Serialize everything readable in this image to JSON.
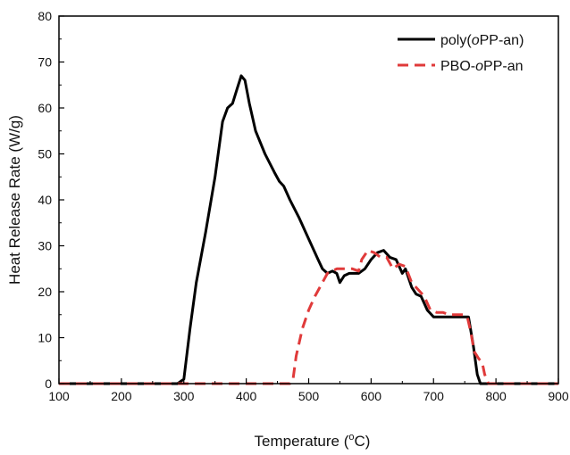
{
  "chart_data": {
    "type": "line",
    "xlabel": "Temperature (°C)",
    "xlabel_parts": {
      "pre": "Temperature (",
      "sup": "o",
      "post": "C)"
    },
    "ylabel": "Heat Release Rate (W/g)",
    "xlim": [
      100,
      900
    ],
    "ylim": [
      0,
      80
    ],
    "x_ticks": [
      100,
      200,
      300,
      400,
      500,
      600,
      700,
      800,
      900
    ],
    "y_ticks": [
      0,
      10,
      20,
      30,
      40,
      50,
      60,
      70,
      80
    ],
    "grid": false,
    "legend_position": "top-right",
    "series": [
      {
        "name": "poly(oPP-an)",
        "name_parts": {
          "pre": "poly(",
          "italic": "o",
          "post": "PP-an)"
        },
        "color": "#000000",
        "dash": "solid",
        "points": [
          [
            100,
            0
          ],
          [
            200,
            0
          ],
          [
            290,
            0
          ],
          [
            300,
            1
          ],
          [
            310,
            12
          ],
          [
            320,
            22
          ],
          [
            335,
            33
          ],
          [
            350,
            45
          ],
          [
            362,
            57
          ],
          [
            370,
            60
          ],
          [
            378,
            61
          ],
          [
            385,
            64
          ],
          [
            392,
            67
          ],
          [
            398,
            66
          ],
          [
            405,
            61
          ],
          [
            415,
            55
          ],
          [
            430,
            50
          ],
          [
            445,
            46
          ],
          [
            453,
            44
          ],
          [
            460,
            43
          ],
          [
            470,
            40
          ],
          [
            485,
            36
          ],
          [
            495,
            33
          ],
          [
            505,
            30
          ],
          [
            515,
            27
          ],
          [
            522,
            25
          ],
          [
            530,
            24
          ],
          [
            538,
            24.5
          ],
          [
            545,
            24
          ],
          [
            550,
            22
          ],
          [
            557,
            23.5
          ],
          [
            565,
            24
          ],
          [
            580,
            24
          ],
          [
            590,
            25
          ],
          [
            600,
            27
          ],
          [
            610,
            28.5
          ],
          [
            620,
            29
          ],
          [
            630,
            27.5
          ],
          [
            640,
            27
          ],
          [
            650,
            24
          ],
          [
            655,
            25
          ],
          [
            665,
            21
          ],
          [
            672,
            19.5
          ],
          [
            680,
            19
          ],
          [
            690,
            16
          ],
          [
            700,
            14.5
          ],
          [
            740,
            14.5
          ],
          [
            756,
            14.5
          ],
          [
            764,
            8
          ],
          [
            770,
            2
          ],
          [
            775,
            0
          ],
          [
            900,
            0
          ]
        ]
      },
      {
        "name": "PBO-oPP-an",
        "name_parts": {
          "pre": "PBO-",
          "italic": "o",
          "post": "PP-an"
        },
        "color": "#e03a3a",
        "dash": "dashed",
        "points": [
          [
            100,
            0
          ],
          [
            200,
            0
          ],
          [
            300,
            0
          ],
          [
            400,
            0
          ],
          [
            470,
            0
          ],
          [
            475,
            1
          ],
          [
            480,
            6
          ],
          [
            490,
            12
          ],
          [
            500,
            16
          ],
          [
            510,
            19
          ],
          [
            520,
            21.5
          ],
          [
            530,
            24
          ],
          [
            545,
            25
          ],
          [
            555,
            25
          ],
          [
            570,
            25
          ],
          [
            580,
            24.5
          ],
          [
            585,
            27
          ],
          [
            595,
            29
          ],
          [
            605,
            28.5
          ],
          [
            615,
            27.5
          ],
          [
            625,
            27.5
          ],
          [
            635,
            25
          ],
          [
            645,
            26
          ],
          [
            655,
            25.5
          ],
          [
            665,
            22
          ],
          [
            675,
            20.5
          ],
          [
            685,
            19
          ],
          [
            695,
            16
          ],
          [
            705,
            15.5
          ],
          [
            715,
            15.5
          ],
          [
            725,
            15
          ],
          [
            740,
            15
          ],
          [
            750,
            15
          ],
          [
            755,
            14
          ],
          [
            760,
            11
          ],
          [
            765,
            7
          ],
          [
            772,
            5.5
          ],
          [
            778,
            4.5
          ],
          [
            782,
            2
          ],
          [
            788,
            0
          ],
          [
            900,
            0
          ]
        ]
      }
    ]
  }
}
